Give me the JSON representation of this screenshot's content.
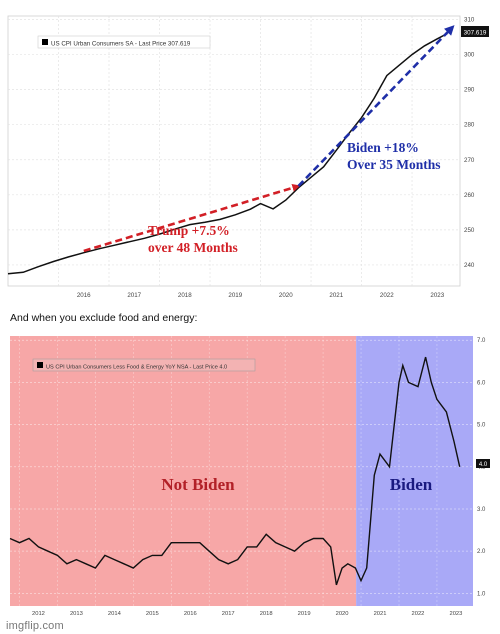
{
  "caption": "And when you exclude food and energy:",
  "watermark": "imgflip.com",
  "chart_data": [
    {
      "type": "line",
      "legend": "US CPI Urban Consumers SA - Last Price 307.619",
      "last_value_label": "307.619",
      "x_ticks": [
        "2016",
        "2017",
        "2018",
        "2019",
        "2020",
        "2021",
        "2022",
        "2023"
      ],
      "y_ticks": [
        "240",
        "250",
        "260",
        "270",
        "280",
        "290",
        "300",
        "310"
      ],
      "ylim": [
        234,
        311
      ],
      "xlim": [
        2015.0,
        2023.95
      ],
      "series": [
        {
          "x": [
            2015.0,
            2015.3,
            2015.6,
            2015.9,
            2016.2,
            2016.5,
            2016.8,
            2017.1,
            2017.4,
            2017.7,
            2018.0,
            2018.3,
            2018.6,
            2018.9,
            2019.2,
            2019.5,
            2019.8,
            2020.0,
            2020.25,
            2020.5,
            2020.75,
            2021.0,
            2021.25,
            2021.5,
            2021.75,
            2022.0,
            2022.25,
            2022.5,
            2022.75,
            2023.0,
            2023.25,
            2023.5,
            2023.7
          ],
          "y": [
            237.5,
            237.9,
            239.5,
            241.0,
            242.3,
            243.5,
            244.6,
            245.6,
            246.6,
            247.6,
            248.8,
            250.2,
            251.5,
            252.2,
            253.0,
            254.3,
            255.9,
            257.5,
            256.0,
            258.5,
            262.0,
            265.0,
            268.0,
            272.7,
            277.5,
            282.0,
            287.5,
            294.0,
            297.0,
            300.0,
            302.5,
            304.5,
            306.0
          ]
        }
      ],
      "annotations": [
        {
          "text": "Trump +7.5%",
          "color": "#d21f26"
        },
        {
          "text": "over 48 Months",
          "color": "#d21f26"
        },
        {
          "text": "Biden +18%",
          "color": "#1f2fa8"
        },
        {
          "text": "Over 35 Months",
          "color": "#1f2fa8"
        }
      ],
      "arrows": [
        {
          "label": "trump-arrow",
          "from": [
            2016.5,
            244.0
          ],
          "to": [
            2020.75,
            262.5
          ],
          "color": "#d21f26"
        },
        {
          "label": "biden-arrow",
          "from": [
            2020.75,
            262.5
          ],
          "to": [
            2023.8,
            307.8
          ],
          "color": "#1f2fa8"
        }
      ]
    },
    {
      "type": "line",
      "legend": "US CPI Urban Consumers Less Food & Energy YoY NSA - Last Price 4.0",
      "last_value_label": "4.0",
      "x_ticks": [
        "2012",
        "2013",
        "2014",
        "2015",
        "2016",
        "2017",
        "2018",
        "2019",
        "2020",
        "2021",
        "2022",
        "2023"
      ],
      "y_ticks": [
        "1.0",
        "2.0",
        "3.0",
        "4.0",
        "5.0",
        "6.0",
        "7.0"
      ],
      "ylim": [
        0.7,
        7.1
      ],
      "xlim": [
        2011.75,
        2023.95
      ],
      "regions": [
        {
          "label": "Not Biden",
          "from": 2011.75,
          "to": 2020.87,
          "color": "#f7a7a7"
        },
        {
          "label": "Biden",
          "from": 2020.87,
          "to": 2023.95,
          "color": "#a9a9f7"
        }
      ],
      "series": [
        {
          "x": [
            2011.75,
            2012.0,
            2012.25,
            2012.5,
            2012.75,
            2013.0,
            2013.25,
            2013.5,
            2013.75,
            2014.0,
            2014.25,
            2014.5,
            2014.75,
            2015.0,
            2015.25,
            2015.5,
            2015.75,
            2016.0,
            2016.25,
            2016.5,
            2016.75,
            2017.0,
            2017.25,
            2017.5,
            2017.75,
            2018.0,
            2018.25,
            2018.5,
            2018.75,
            2019.0,
            2019.25,
            2019.5,
            2019.75,
            2020.0,
            2020.2,
            2020.35,
            2020.5,
            2020.65,
            2020.85,
            2021.0,
            2021.15,
            2021.35,
            2021.5,
            2021.75,
            2022.0,
            2022.1,
            2022.25,
            2022.5,
            2022.7,
            2022.85,
            2023.0,
            2023.25,
            2023.45,
            2023.6
          ],
          "y": [
            2.3,
            2.2,
            2.3,
            2.1,
            2.0,
            1.9,
            1.7,
            1.8,
            1.7,
            1.6,
            1.9,
            1.8,
            1.7,
            1.6,
            1.8,
            1.9,
            1.9,
            2.2,
            2.2,
            2.2,
            2.2,
            2.0,
            1.8,
            1.7,
            1.8,
            2.1,
            2.1,
            2.4,
            2.2,
            2.1,
            2.0,
            2.2,
            2.3,
            2.3,
            2.1,
            1.2,
            1.6,
            1.7,
            1.6,
            1.3,
            1.6,
            3.8,
            4.3,
            4.0,
            6.0,
            6.4,
            6.0,
            5.9,
            6.6,
            6.0,
            5.6,
            5.3,
            4.6,
            4.0
          ]
        }
      ],
      "annotations": [
        {
          "text": "Not Biden",
          "color": "#b22027"
        },
        {
          "text": "Biden",
          "color": "#1a1a80"
        }
      ]
    }
  ]
}
